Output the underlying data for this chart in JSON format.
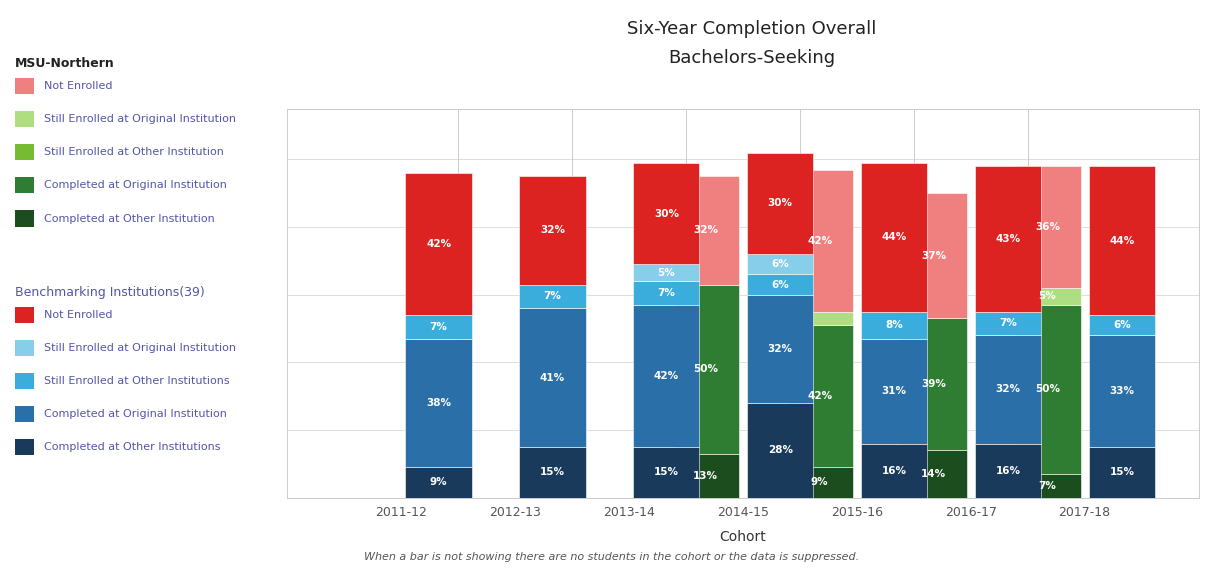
{
  "title_line1": "Six-Year Completion Overall",
  "title_line2": "Bachelors-Seeking",
  "xlabel": "Cohort",
  "footnote": "When a bar is not showing there are no students in the cohort or the data is suppressed.",
  "years": [
    "2011-12",
    "2012-13",
    "2013-14",
    "2014-15",
    "2015-16",
    "2016-17",
    "2017-18"
  ],
  "msu_colors": {
    "not_enrolled": "#F08080",
    "still_enrolled_orig": "#AEDD82",
    "still_enrolled_other": "#77BB33",
    "completed_orig": "#2E7D32",
    "completed_other": "#1B4D1E"
  },
  "bench_colors": {
    "not_enrolled": "#DD2222",
    "still_enrolled_orig": "#87CEEB",
    "still_enrolled_other": "#3AADDD",
    "completed_orig": "#2A6FA8",
    "completed_other": "#1A3A5C"
  },
  "msu_data": {
    "not_enrolled": [
      0,
      0,
      0,
      32,
      42,
      37,
      36
    ],
    "still_enrolled_orig": [
      0,
      0,
      0,
      0,
      4,
      0,
      5
    ],
    "still_enrolled_other": [
      0,
      0,
      0,
      0,
      0,
      0,
      0
    ],
    "completed_orig": [
      0,
      0,
      0,
      50,
      42,
      39,
      50
    ],
    "completed_other": [
      0,
      0,
      0,
      13,
      9,
      14,
      7
    ]
  },
  "bench_data": {
    "not_enrolled": [
      42,
      32,
      30,
      30,
      44,
      43,
      44
    ],
    "still_enrolled_orig": [
      0,
      0,
      5,
      6,
      0,
      0,
      0
    ],
    "still_enrolled_other": [
      7,
      7,
      7,
      6,
      8,
      7,
      6
    ],
    "completed_orig": [
      38,
      41,
      42,
      32,
      31,
      32,
      33
    ],
    "completed_other": [
      9,
      15,
      15,
      28,
      16,
      16,
      15
    ]
  },
  "msu_labels": {
    "not_enrolled": [
      null,
      null,
      null,
      "32%",
      "42%",
      "37%",
      "36%"
    ],
    "still_enrolled_orig": [
      null,
      null,
      null,
      null,
      null,
      null,
      "5%"
    ],
    "still_enrolled_other": [
      null,
      null,
      null,
      null,
      null,
      null,
      null
    ],
    "completed_orig": [
      null,
      null,
      null,
      "50%",
      "42%",
      "39%",
      "50%"
    ],
    "completed_other": [
      null,
      null,
      null,
      "13%",
      "9%",
      "14%",
      "7%"
    ]
  },
  "bench_labels": {
    "not_enrolled": [
      "42%",
      "32%",
      "30%",
      "30%",
      "44%",
      "43%",
      "44%"
    ],
    "still_enrolled_orig": [
      null,
      null,
      "5%",
      "6%",
      null,
      null,
      null
    ],
    "still_enrolled_other": [
      "7%",
      "7%",
      "7%",
      "6%",
      "8%",
      "7%",
      "6%"
    ],
    "completed_orig": [
      "38%",
      "41%",
      "42%",
      "32%",
      "31%",
      "32%",
      "33%"
    ],
    "completed_other": [
      "9%",
      "15%",
      "15%",
      "28%",
      "16%",
      "16%",
      "15%"
    ]
  },
  "legend_msu_title": "MSU-Northern",
  "legend_bench_title": "Benchmarking Institutions(39)",
  "legend_msu_items": [
    {
      "label": "Not Enrolled",
      "color": "#F08080"
    },
    {
      "label": "Still Enrolled at Original Institution",
      "color": "#AEDD82"
    },
    {
      "label": "Still Enrolled at Other Institution",
      "color": "#77BB33"
    },
    {
      "label": "Completed at Original Institution",
      "color": "#2E7D32"
    },
    {
      "label": "Completed at Other Institution",
      "color": "#1B4D1E"
    }
  ],
  "legend_bench_items": [
    {
      "label": "Not Enrolled",
      "color": "#DD2222"
    },
    {
      "label": "Still Enrolled at Original Institution",
      "color": "#87CEEB"
    },
    {
      "label": "Still Enrolled at Other Institutions",
      "color": "#3AADDD"
    },
    {
      "label": "Completed at Original Institution",
      "color": "#2A6FA8"
    },
    {
      "label": "Completed at Other Institutions",
      "color": "#1A3A5C"
    }
  ]
}
